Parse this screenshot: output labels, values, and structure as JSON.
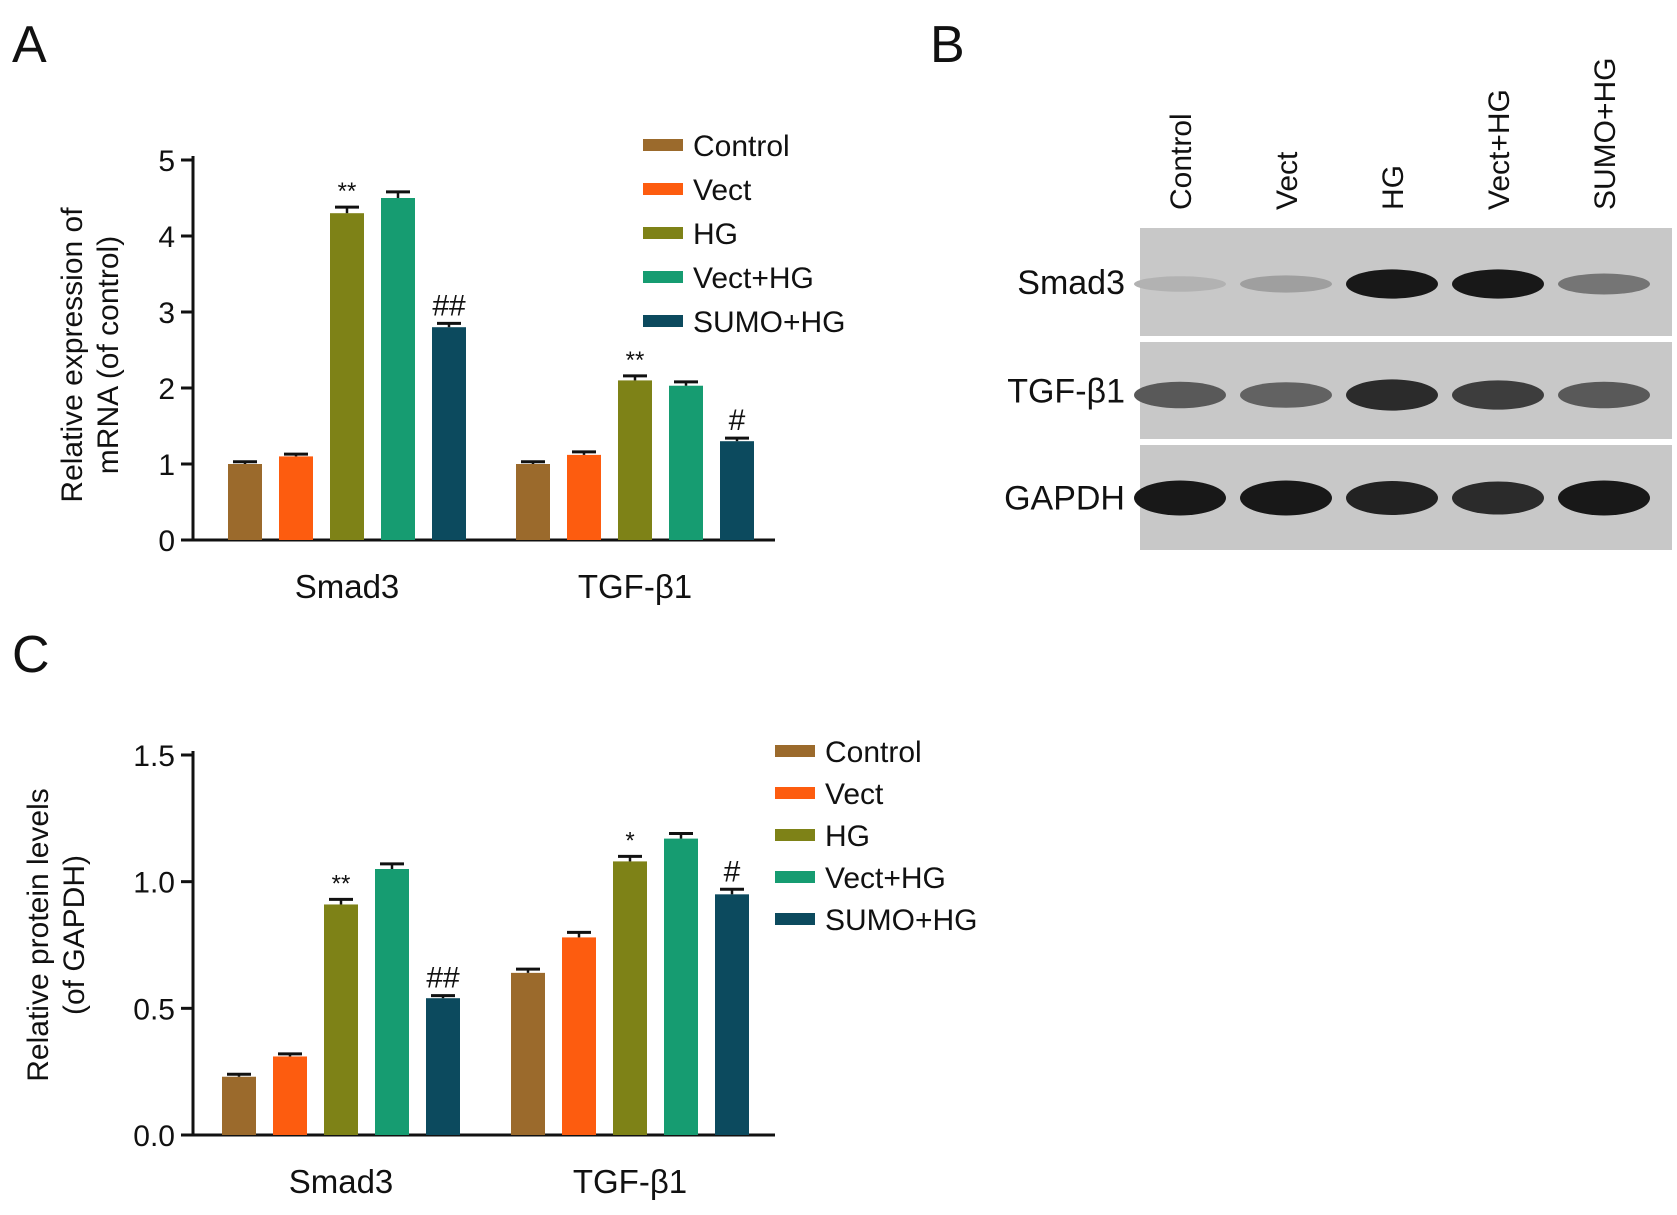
{
  "panels": {
    "a": "A",
    "b": "B",
    "c": "C"
  },
  "colors": {
    "Control": "#9b6a2c",
    "Vect": "#fd5c0f",
    "HG": "#7e8217",
    "Vect+HG": "#169c71",
    "SUMO+HG": "#0c4a5e"
  },
  "chart_data": [
    {
      "panel": "A",
      "type": "bar",
      "categories": [
        "Smad3",
        "TGF-β1"
      ],
      "ylabel_line1": "Relative expression of",
      "ylabel_line2": "mRNA (of control)",
      "ylim": [
        0,
        5
      ],
      "yticks": [
        "0",
        "1",
        "2",
        "3",
        "4",
        "5"
      ],
      "ytick_values": [
        0,
        1,
        2,
        3,
        4,
        5
      ],
      "legend_position": "top-right",
      "series": [
        {
          "name": "Control",
          "values": [
            1.0,
            1.0
          ],
          "errors": [
            0.03,
            0.03
          ]
        },
        {
          "name": "Vect",
          "values": [
            1.1,
            1.12
          ],
          "errors": [
            0.03,
            0.04
          ]
        },
        {
          "name": "HG",
          "values": [
            4.3,
            2.1
          ],
          "errors": [
            0.08,
            0.06
          ],
          "annotations": [
            "**",
            "**"
          ]
        },
        {
          "name": "Vect+HG",
          "values": [
            4.5,
            2.03
          ],
          "errors": [
            0.08,
            0.05
          ]
        },
        {
          "name": "SUMO+HG",
          "values": [
            2.8,
            1.3
          ],
          "errors": [
            0.05,
            0.04
          ],
          "annotations": [
            "##",
            "#"
          ]
        }
      ]
    },
    {
      "panel": "C",
      "type": "bar",
      "categories": [
        "Smad3",
        "TGF-β1"
      ],
      "ylabel_line1": "Relative protein levels",
      "ylabel_line2": "(of GAPDH)",
      "ylim": [
        0,
        1.5
      ],
      "yticks": [
        "0.0",
        "0.5",
        "1.0",
        "1.5"
      ],
      "ytick_values": [
        0,
        0.5,
        1.0,
        1.5
      ],
      "legend_position": "top-right",
      "series": [
        {
          "name": "Control",
          "values": [
            0.23,
            0.64
          ],
          "errors": [
            0.01,
            0.015
          ]
        },
        {
          "name": "Vect",
          "values": [
            0.31,
            0.78
          ],
          "errors": [
            0.01,
            0.02
          ]
        },
        {
          "name": "HG",
          "values": [
            0.91,
            1.08
          ],
          "errors": [
            0.02,
            0.02
          ],
          "annotations": [
            "**",
            "*"
          ]
        },
        {
          "name": "Vect+HG",
          "values": [
            1.05,
            1.17
          ],
          "errors": [
            0.02,
            0.02
          ]
        },
        {
          "name": "SUMO+HG",
          "values": [
            0.54,
            0.95
          ],
          "errors": [
            0.01,
            0.02
          ],
          "annotations": [
            "##",
            "#"
          ]
        }
      ]
    }
  ],
  "blot": {
    "lanes": [
      "Control",
      "Vect",
      "HG",
      "Vect+HG",
      "SUMO+HG"
    ],
    "rows": [
      {
        "label": "Smad3",
        "intensities": [
          0.12,
          0.22,
          0.95,
          0.95,
          0.45
        ]
      },
      {
        "label": "TGF-β1",
        "intensities": [
          0.6,
          0.55,
          0.85,
          0.75,
          0.6
        ]
      },
      {
        "label": "GAPDH",
        "intensities": [
          0.95,
          0.95,
          0.9,
          0.85,
          0.95
        ]
      }
    ]
  }
}
